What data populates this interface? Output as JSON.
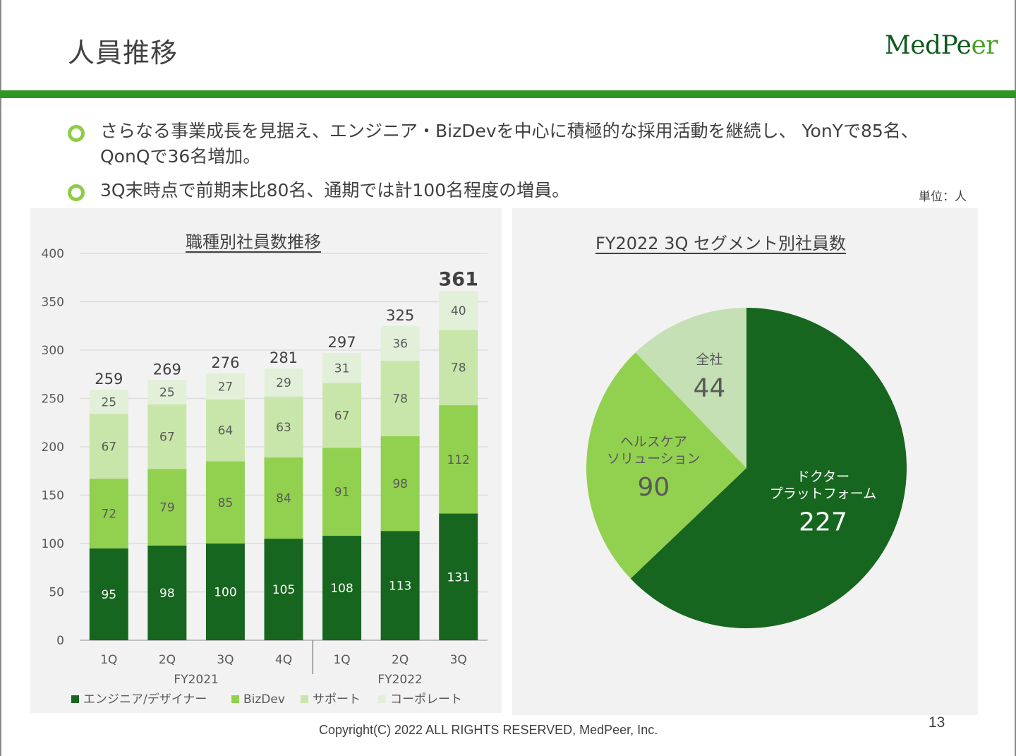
{
  "slide": {
    "title": "人員推移",
    "logo_main": "Med",
    "logo_accent_d": "d",
    "logo_rest": "Pe",
    "logo_tail": "er",
    "bullets": [
      "さらなる事業成長を見据え、エンジニア・BizDevを中心に積極的な採用活動を継続し、 YonYで85名、QonQで36名増加。",
      "3Q末時点で前期末比80名、通期では計100名程度の増員。"
    ],
    "unit": "単位：人",
    "footer": "Copyright(C) 2022 ALL RIGHTS RESERVED, MedPeer, Inc.",
    "page_number": "13",
    "colors": {
      "accent": "#2e9723",
      "engineer": "#17661f",
      "bizdev": "#92d050",
      "support": "#c8e6a9",
      "corporate": "#e2f0d9",
      "pie_corporate": "#c5e0b4"
    }
  },
  "chart_data": [
    {
      "type": "bar",
      "stacked": true,
      "title": "職種別社員数推移",
      "categories": [
        "1Q",
        "2Q",
        "3Q",
        "4Q",
        "1Q",
        "2Q",
        "3Q"
      ],
      "category_groups": [
        {
          "label": "FY2021",
          "count": 4
        },
        {
          "label": "FY2022",
          "count": 3
        }
      ],
      "series": [
        {
          "name": "エンジニア/デザイナー",
          "values": [
            95,
            98,
            100,
            105,
            108,
            113,
            131
          ]
        },
        {
          "name": "BizDev",
          "values": [
            72,
            79,
            85,
            84,
            91,
            98,
            112
          ]
        },
        {
          "name": "サポート",
          "values": [
            67,
            67,
            64,
            63,
            67,
            78,
            78
          ]
        },
        {
          "name": "コーポレート",
          "values": [
            25,
            25,
            27,
            29,
            31,
            36,
            40
          ]
        }
      ],
      "totals": [
        259,
        269,
        276,
        281,
        297,
        325,
        361
      ],
      "yticks": [
        0,
        50,
        100,
        150,
        200,
        250,
        300,
        350,
        400
      ],
      "ylim": [
        0,
        400
      ],
      "grid": true,
      "legend": "bottom",
      "xlabel": "",
      "ylabel": ""
    },
    {
      "type": "pie",
      "title": "FY2022 3Q セグメント別社員数",
      "slices": [
        {
          "name": "ドクタープラットフォーム",
          "label_lines": [
            "ドクター",
            "プラットフォーム"
          ],
          "value": 227
        },
        {
          "name": "ヘルスケアソリューション",
          "label_lines": [
            "ヘルスケア",
            "ソリューション"
          ],
          "value": 90
        },
        {
          "name": "全社",
          "label_lines": [
            "全社"
          ],
          "value": 44
        }
      ],
      "start": "top",
      "direction": "clockwise"
    }
  ]
}
